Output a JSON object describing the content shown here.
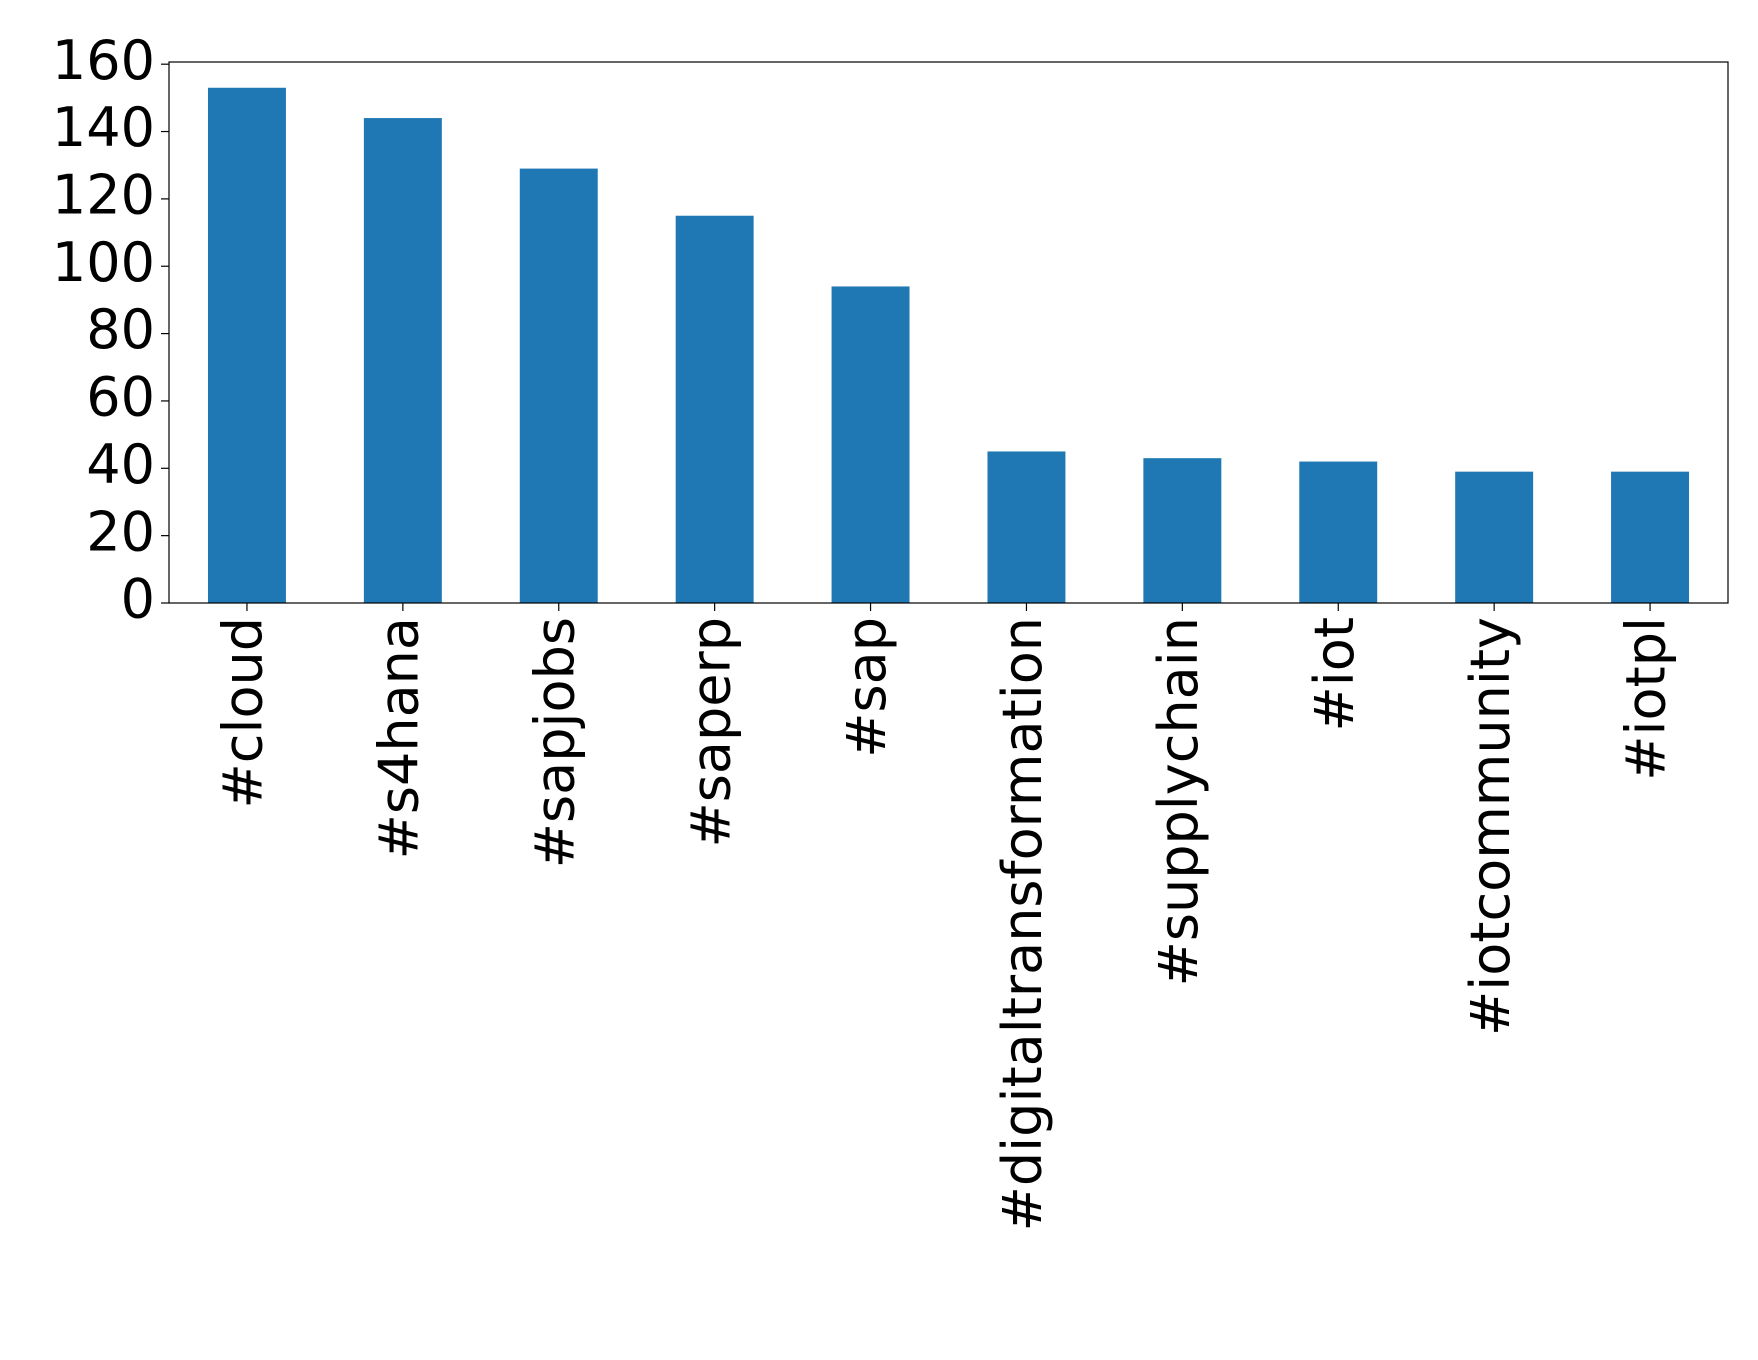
{
  "chart_data": {
    "type": "bar",
    "categories": [
      "#cloud",
      "#s4hana",
      "#sapjobs",
      "#saperp",
      "#sap",
      "#digitaltransformation",
      "#supplychain",
      "#iot",
      "#iotcommunity",
      "#iotpl"
    ],
    "values": [
      153,
      144,
      129,
      115,
      94,
      45,
      43,
      42,
      39,
      39
    ],
    "color": "#1f77b4",
    "ylim": [
      0,
      160.65
    ],
    "yticks": [
      0,
      20,
      40,
      60,
      80,
      100,
      120,
      140,
      160
    ],
    "grid": false
  }
}
